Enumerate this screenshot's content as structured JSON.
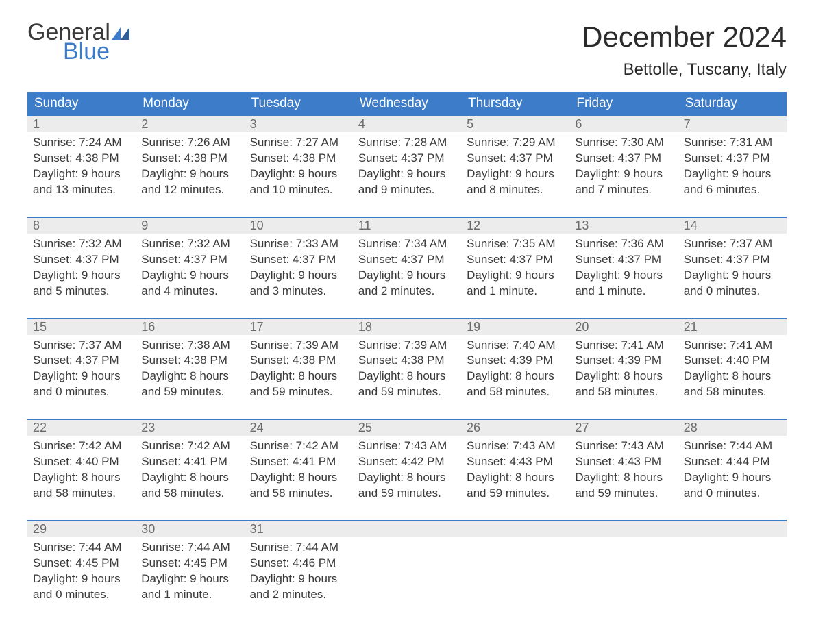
{
  "brand": {
    "word1": "General",
    "word2": "Blue",
    "word2_color": "#3d7cc9"
  },
  "title": "December 2024",
  "location": "Bettolle, Tuscany, Italy",
  "colors": {
    "header_bg": "#3d7cc9",
    "header_text": "#ffffff",
    "daynum_bg": "#ececec",
    "daynum_border": "#3d7cc9",
    "body_text": "#3a3a3a",
    "daynum_text": "#6b6b6b",
    "page_bg": "#ffffff"
  },
  "typography": {
    "title_fontsize": 42,
    "location_fontsize": 24,
    "dow_fontsize": 19,
    "daynum_fontsize": 18,
    "detail_fontsize": 17
  },
  "days_of_week": [
    "Sunday",
    "Monday",
    "Tuesday",
    "Wednesday",
    "Thursday",
    "Friday",
    "Saturday"
  ],
  "weeks": [
    [
      {
        "n": "1",
        "sunrise": "Sunrise: 7:24 AM",
        "sunset": "Sunset: 4:38 PM",
        "dl1": "Daylight: 9 hours",
        "dl2": "and 13 minutes."
      },
      {
        "n": "2",
        "sunrise": "Sunrise: 7:26 AM",
        "sunset": "Sunset: 4:38 PM",
        "dl1": "Daylight: 9 hours",
        "dl2": "and 12 minutes."
      },
      {
        "n": "3",
        "sunrise": "Sunrise: 7:27 AM",
        "sunset": "Sunset: 4:38 PM",
        "dl1": "Daylight: 9 hours",
        "dl2": "and 10 minutes."
      },
      {
        "n": "4",
        "sunrise": "Sunrise: 7:28 AM",
        "sunset": "Sunset: 4:37 PM",
        "dl1": "Daylight: 9 hours",
        "dl2": "and 9 minutes."
      },
      {
        "n": "5",
        "sunrise": "Sunrise: 7:29 AM",
        "sunset": "Sunset: 4:37 PM",
        "dl1": "Daylight: 9 hours",
        "dl2": "and 8 minutes."
      },
      {
        "n": "6",
        "sunrise": "Sunrise: 7:30 AM",
        "sunset": "Sunset: 4:37 PM",
        "dl1": "Daylight: 9 hours",
        "dl2": "and 7 minutes."
      },
      {
        "n": "7",
        "sunrise": "Sunrise: 7:31 AM",
        "sunset": "Sunset: 4:37 PM",
        "dl1": "Daylight: 9 hours",
        "dl2": "and 6 minutes."
      }
    ],
    [
      {
        "n": "8",
        "sunrise": "Sunrise: 7:32 AM",
        "sunset": "Sunset: 4:37 PM",
        "dl1": "Daylight: 9 hours",
        "dl2": "and 5 minutes."
      },
      {
        "n": "9",
        "sunrise": "Sunrise: 7:32 AM",
        "sunset": "Sunset: 4:37 PM",
        "dl1": "Daylight: 9 hours",
        "dl2": "and 4 minutes."
      },
      {
        "n": "10",
        "sunrise": "Sunrise: 7:33 AM",
        "sunset": "Sunset: 4:37 PM",
        "dl1": "Daylight: 9 hours",
        "dl2": "and 3 minutes."
      },
      {
        "n": "11",
        "sunrise": "Sunrise: 7:34 AM",
        "sunset": "Sunset: 4:37 PM",
        "dl1": "Daylight: 9 hours",
        "dl2": "and 2 minutes."
      },
      {
        "n": "12",
        "sunrise": "Sunrise: 7:35 AM",
        "sunset": "Sunset: 4:37 PM",
        "dl1": "Daylight: 9 hours",
        "dl2": "and 1 minute."
      },
      {
        "n": "13",
        "sunrise": "Sunrise: 7:36 AM",
        "sunset": "Sunset: 4:37 PM",
        "dl1": "Daylight: 9 hours",
        "dl2": "and 1 minute."
      },
      {
        "n": "14",
        "sunrise": "Sunrise: 7:37 AM",
        "sunset": "Sunset: 4:37 PM",
        "dl1": "Daylight: 9 hours",
        "dl2": "and 0 minutes."
      }
    ],
    [
      {
        "n": "15",
        "sunrise": "Sunrise: 7:37 AM",
        "sunset": "Sunset: 4:37 PM",
        "dl1": "Daylight: 9 hours",
        "dl2": "and 0 minutes."
      },
      {
        "n": "16",
        "sunrise": "Sunrise: 7:38 AM",
        "sunset": "Sunset: 4:38 PM",
        "dl1": "Daylight: 8 hours",
        "dl2": "and 59 minutes."
      },
      {
        "n": "17",
        "sunrise": "Sunrise: 7:39 AM",
        "sunset": "Sunset: 4:38 PM",
        "dl1": "Daylight: 8 hours",
        "dl2": "and 59 minutes."
      },
      {
        "n": "18",
        "sunrise": "Sunrise: 7:39 AM",
        "sunset": "Sunset: 4:38 PM",
        "dl1": "Daylight: 8 hours",
        "dl2": "and 59 minutes."
      },
      {
        "n": "19",
        "sunrise": "Sunrise: 7:40 AM",
        "sunset": "Sunset: 4:39 PM",
        "dl1": "Daylight: 8 hours",
        "dl2": "and 58 minutes."
      },
      {
        "n": "20",
        "sunrise": "Sunrise: 7:41 AM",
        "sunset": "Sunset: 4:39 PM",
        "dl1": "Daylight: 8 hours",
        "dl2": "and 58 minutes."
      },
      {
        "n": "21",
        "sunrise": "Sunrise: 7:41 AM",
        "sunset": "Sunset: 4:40 PM",
        "dl1": "Daylight: 8 hours",
        "dl2": "and 58 minutes."
      }
    ],
    [
      {
        "n": "22",
        "sunrise": "Sunrise: 7:42 AM",
        "sunset": "Sunset: 4:40 PM",
        "dl1": "Daylight: 8 hours",
        "dl2": "and 58 minutes."
      },
      {
        "n": "23",
        "sunrise": "Sunrise: 7:42 AM",
        "sunset": "Sunset: 4:41 PM",
        "dl1": "Daylight: 8 hours",
        "dl2": "and 58 minutes."
      },
      {
        "n": "24",
        "sunrise": "Sunrise: 7:42 AM",
        "sunset": "Sunset: 4:41 PM",
        "dl1": "Daylight: 8 hours",
        "dl2": "and 58 minutes."
      },
      {
        "n": "25",
        "sunrise": "Sunrise: 7:43 AM",
        "sunset": "Sunset: 4:42 PM",
        "dl1": "Daylight: 8 hours",
        "dl2": "and 59 minutes."
      },
      {
        "n": "26",
        "sunrise": "Sunrise: 7:43 AM",
        "sunset": "Sunset: 4:43 PM",
        "dl1": "Daylight: 8 hours",
        "dl2": "and 59 minutes."
      },
      {
        "n": "27",
        "sunrise": "Sunrise: 7:43 AM",
        "sunset": "Sunset: 4:43 PM",
        "dl1": "Daylight: 8 hours",
        "dl2": "and 59 minutes."
      },
      {
        "n": "28",
        "sunrise": "Sunrise: 7:44 AM",
        "sunset": "Sunset: 4:44 PM",
        "dl1": "Daylight: 9 hours",
        "dl2": "and 0 minutes."
      }
    ],
    [
      {
        "n": "29",
        "sunrise": "Sunrise: 7:44 AM",
        "sunset": "Sunset: 4:45 PM",
        "dl1": "Daylight: 9 hours",
        "dl2": "and 0 minutes."
      },
      {
        "n": "30",
        "sunrise": "Sunrise: 7:44 AM",
        "sunset": "Sunset: 4:45 PM",
        "dl1": "Daylight: 9 hours",
        "dl2": "and 1 minute."
      },
      {
        "n": "31",
        "sunrise": "Sunrise: 7:44 AM",
        "sunset": "Sunset: 4:46 PM",
        "dl1": "Daylight: 9 hours",
        "dl2": "and 2 minutes."
      },
      null,
      null,
      null,
      null
    ]
  ]
}
